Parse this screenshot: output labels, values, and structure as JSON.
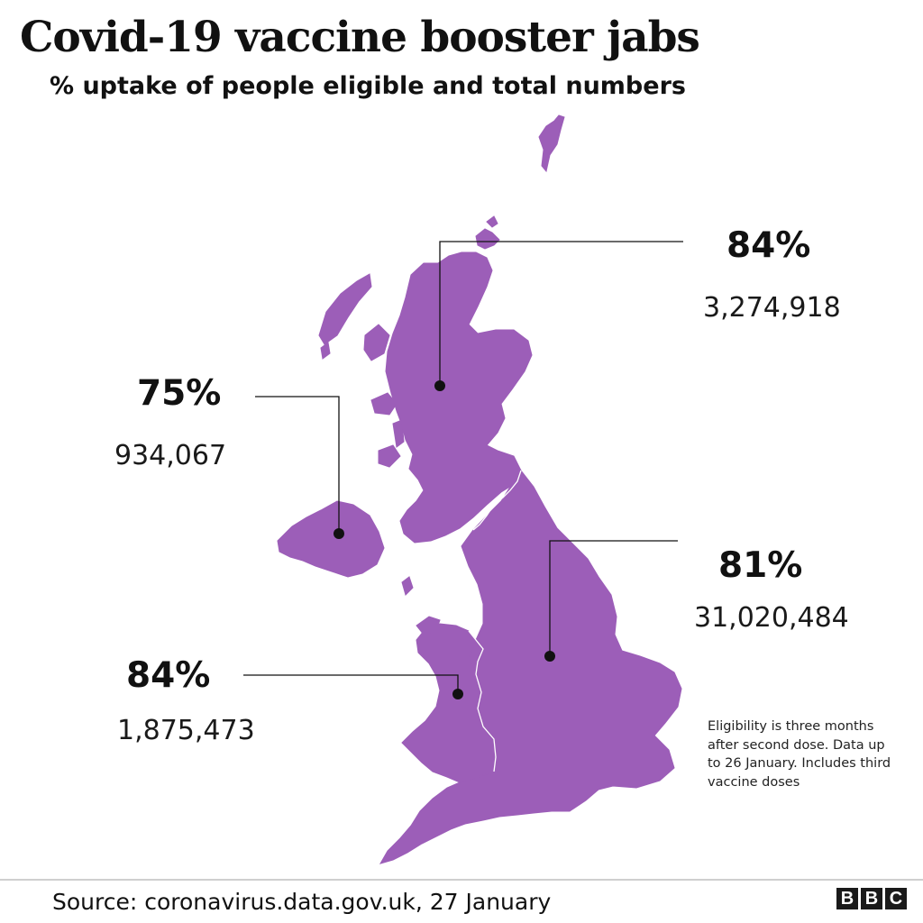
{
  "header": {
    "title": "Covid-19 vaccine booster jabs",
    "subtitle": "% uptake of people eligible and total numbers"
  },
  "map": {
    "fill_color": "#9c5eb8",
    "border_color": "#ffffff",
    "regions": [
      {
        "region": "Scotland",
        "percent": "84%",
        "total": "3,274,918",
        "uptake_pct": 84,
        "total_value": 3274918
      },
      {
        "region": "Northern Ireland",
        "percent": "75%",
        "total": "934,067",
        "uptake_pct": 75,
        "total_value": 934067
      },
      {
        "region": "England",
        "percent": "81%",
        "total": "31,020,484",
        "uptake_pct": 81,
        "total_value": 31020484
      },
      {
        "region": "Wales",
        "percent": "84%",
        "total": "1,875,473",
        "uptake_pct": 84,
        "total_value": 1875473
      }
    ]
  },
  "note": "Eligibility is three months after second dose. Data up to 26 January. Includes third vaccine doses",
  "footer": {
    "source": "Source: coronavirus.data.gov.uk, 27 January",
    "logo_letters": [
      "B",
      "B",
      "C"
    ]
  }
}
